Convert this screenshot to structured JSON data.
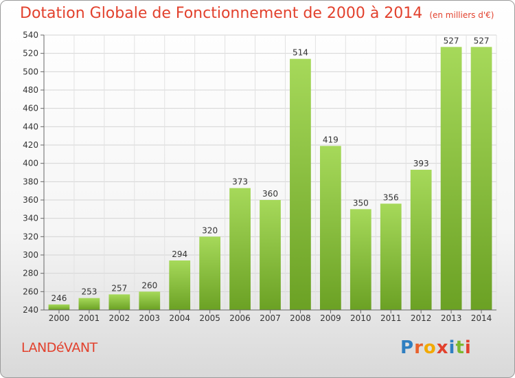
{
  "title": "Dotation Globale de Fonctionnement de 2000 à 2014",
  "unit": "(en milliers d'€)",
  "commune": "LANDéVANT",
  "logo": {
    "text": "Proxiti",
    "letter_colors": [
      "#2f7fc1",
      "#e8612c",
      "#f2a900",
      "#e2412d",
      "#2f7fc1",
      "#7cb82f",
      "#e2412d"
    ]
  },
  "colors": {
    "bar_light": "#a6d95a",
    "bar_dark": "#6ba124",
    "title": "#e2412d"
  },
  "chart_data": {
    "type": "bar",
    "categories": [
      "2000",
      "2001",
      "2002",
      "2003",
      "2004",
      "2005",
      "2006",
      "2007",
      "2008",
      "2009",
      "2010",
      "2011",
      "2012",
      "2013",
      "2014"
    ],
    "values": [
      246,
      253,
      257,
      260,
      294,
      320,
      373,
      360,
      514,
      419,
      350,
      356,
      393,
      527,
      527
    ],
    "ylim": [
      240,
      540
    ],
    "yticks": [
      240,
      260,
      280,
      300,
      320,
      340,
      360,
      380,
      400,
      420,
      440,
      460,
      480,
      500,
      520,
      540
    ],
    "grid": true,
    "data_labels": true
  }
}
